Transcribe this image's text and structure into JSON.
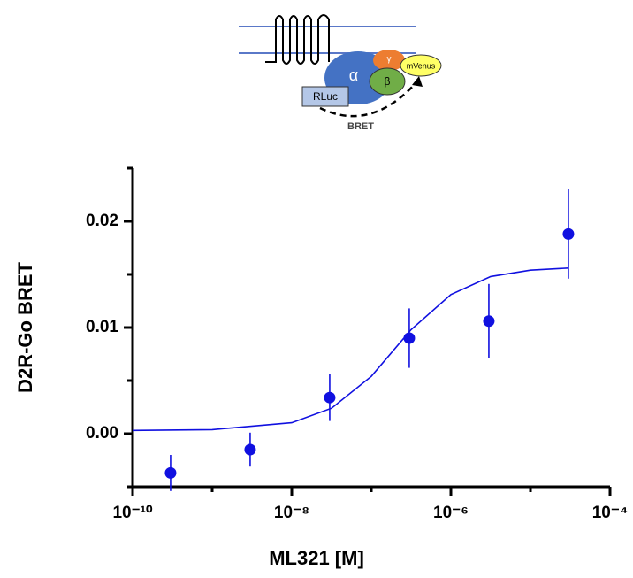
{
  "diagram": {
    "alpha": "α",
    "gamma": "γ",
    "beta": "β",
    "acceptor": "mVenus",
    "donor": "RLuc",
    "arrow_label": "BRET"
  },
  "chart_data": {
    "type": "scatter",
    "xlabel": "ML321 [M]",
    "ylabel": "D2R-Go BRET",
    "xscale": "log",
    "xlim": [
      1e-10,
      0.0001
    ],
    "xticks": [
      {
        "value": 1e-10,
        "label": "10⁻¹⁰"
      },
      {
        "value": 1e-08,
        "label": "10⁻⁸"
      },
      {
        "value": 1e-06,
        "label": "10⁻⁶"
      },
      {
        "value": 0.0001,
        "label": "10⁻⁴"
      }
    ],
    "xminor_ticks": [
      1e-09,
      1e-07,
      1e-05
    ],
    "ylim": [
      -0.005,
      0.025
    ],
    "yticks": [
      {
        "value": 0,
        "label": "0.00"
      },
      0.01,
      0.02
    ],
    "yminor_ticks": [
      -0.005,
      0.005,
      0.015,
      0.025
    ],
    "color": "#1010e0",
    "series": [
      {
        "x": [
          3e-10,
          3e-09,
          3e-08,
          3e-07,
          3e-06,
          3e-05
        ],
        "values": [
          -0.0037,
          -0.0015,
          0.0034,
          0.009,
          0.0106,
          0.0188
        ],
        "errors": [
          0.0017,
          0.0016,
          0.0022,
          0.0028,
          0.0035,
          0.0042
        ]
      }
    ],
    "curve": {
      "x": [
        1e-10,
        1e-09,
        1e-08,
        3.162e-08,
        1e-07,
        3.162e-07,
        1e-06,
        3.162e-06,
        1e-05,
        3e-05
      ],
      "values": [
        0.00031,
        0.00038,
        0.00103,
        0.0024,
        0.0054,
        0.0098,
        0.0131,
        0.0148,
        0.0154,
        0.0156
      ]
    }
  }
}
